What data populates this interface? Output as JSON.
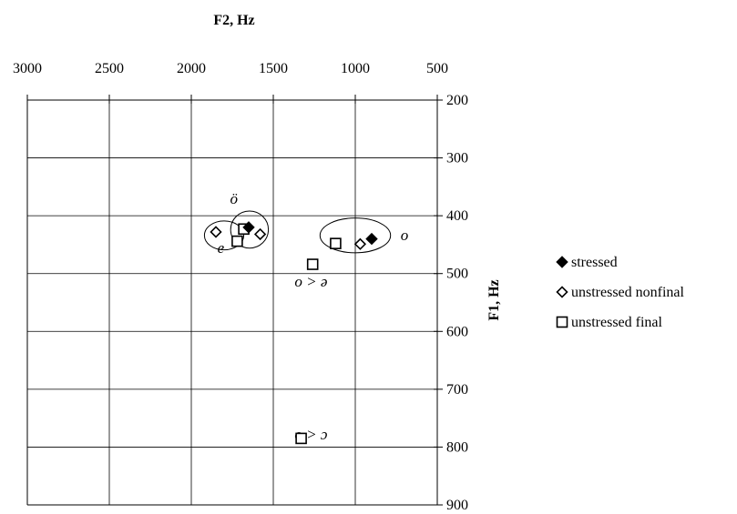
{
  "chart_data": {
    "type": "scatter",
    "xlabel": "F2, Hz",
    "ylabel": "F1, Hz",
    "x_axis": {
      "reversed": true,
      "range": [
        3000,
        500
      ],
      "ticks": [
        3000,
        2500,
        2000,
        1500,
        1000,
        500
      ],
      "tick_labels": [
        "3000",
        "2500",
        "2000",
        "1500",
        "1000",
        "500"
      ],
      "position": "top"
    },
    "y_axis": {
      "reversed": true,
      "range": [
        200,
        900
      ],
      "ticks": [
        200,
        300,
        400,
        500,
        600,
        700,
        800,
        900
      ],
      "tick_labels": [
        "200",
        "300",
        "400",
        "500",
        "600",
        "700",
        "800",
        "900"
      ],
      "position": "right"
    },
    "grid": true,
    "legend_position": "right",
    "series": [
      {
        "name": "stressed",
        "marker": "filled-diamond",
        "color": "#000000",
        "points": [
          {
            "x": 1650,
            "y": 420
          },
          {
            "x": 900,
            "y": 440
          }
        ]
      },
      {
        "name": "unstressed nonfinal",
        "marker": "open-diamond",
        "color": "#000000",
        "points": [
          {
            "x": 1850,
            "y": 428
          },
          {
            "x": 1580,
            "y": 432
          },
          {
            "x": 970,
            "y": 449
          }
        ]
      },
      {
        "name": "unstressed final",
        "marker": "open-square",
        "color": "#000000",
        "points": [
          {
            "x": 1720,
            "y": 444
          },
          {
            "x": 1680,
            "y": 423
          },
          {
            "x": 1120,
            "y": 448
          },
          {
            "x": 1260,
            "y": 484
          },
          {
            "x": 1330,
            "y": 785
          }
        ]
      }
    ],
    "annotations": [
      {
        "text": "ö",
        "x": 1740,
        "y": 370
      },
      {
        "text": "e",
        "x": 1820,
        "y": 455
      },
      {
        "text": "o",
        "x": 700,
        "y": 433
      },
      {
        "text": "o > ə",
        "x": 1270,
        "y": 513
      },
      {
        "text": "o > ɔ",
        "x": 1270,
        "y": 777
      }
    ],
    "ellipses": [
      {
        "label": "e",
        "cx": 1800,
        "cy": 434,
        "rx": 120,
        "ry": 25
      },
      {
        "label": "ö",
        "cx": 1645,
        "cy": 424,
        "rx": 115,
        "ry": 32
      },
      {
        "label": "o",
        "cx": 1000,
        "cy": 434,
        "rx": 215,
        "ry": 30
      }
    ]
  }
}
